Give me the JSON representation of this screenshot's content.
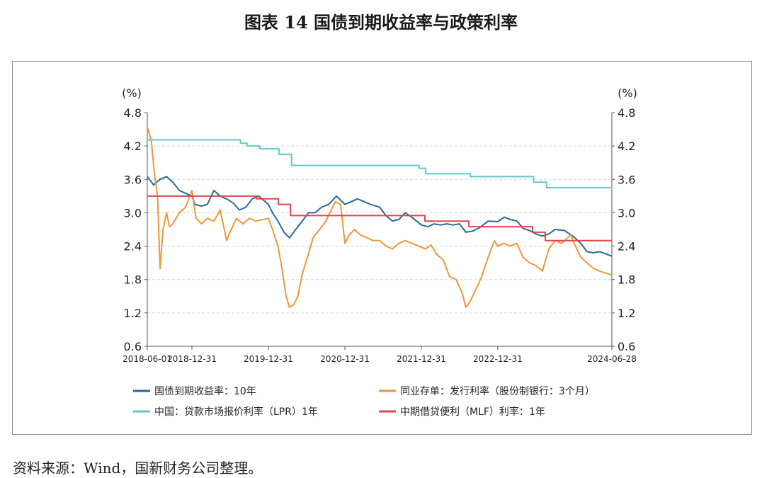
{
  "title": "图表 14  国债到期收益率与政策利率",
  "source": "资料来源：Wind，国新财务公司整理。",
  "chart_data": {
    "type": "line",
    "unit_left": "(%)",
    "unit_right": "(%)",
    "ylim": [
      0.6,
      4.8
    ],
    "yticks": [
      "4.8",
      "4.2",
      "3.6",
      "3.0",
      "2.4",
      "1.8",
      "1.2",
      "0.6"
    ],
    "xlim": [
      "2018-06-01",
      "2024-06-28"
    ],
    "xticks": [
      "2018-06-01",
      "2018-12-31",
      "2019-12-31",
      "2020-12-31",
      "2021-12-31",
      "2022-12-31",
      "2024-06-28"
    ],
    "grid": true,
    "legend_position": "bottom",
    "series": [
      {
        "name": "国债到期收益率：10年",
        "color": "#2a6a96",
        "style": "line",
        "points": [
          [
            "2018-06-01",
            3.65
          ],
          [
            "2018-07-01",
            3.5
          ],
          [
            "2018-08-01",
            3.6
          ],
          [
            "2018-09-01",
            3.65
          ],
          [
            "2018-10-01",
            3.55
          ],
          [
            "2018-11-01",
            3.4
          ],
          [
            "2018-12-31",
            3.3
          ],
          [
            "2019-01-15",
            3.15
          ],
          [
            "2019-02-15",
            3.12
          ],
          [
            "2019-03-15",
            3.15
          ],
          [
            "2019-04-15",
            3.4
          ],
          [
            "2019-05-15",
            3.3
          ],
          [
            "2019-06-15",
            3.25
          ],
          [
            "2019-07-15",
            3.18
          ],
          [
            "2019-08-15",
            3.05
          ],
          [
            "2019-09-15",
            3.1
          ],
          [
            "2019-10-15",
            3.25
          ],
          [
            "2019-11-15",
            3.3
          ],
          [
            "2019-12-31",
            3.15
          ],
          [
            "2020-01-20",
            3.0
          ],
          [
            "2020-02-15",
            2.85
          ],
          [
            "2020-03-15",
            2.65
          ],
          [
            "2020-04-10",
            2.55
          ],
          [
            "2020-05-10",
            2.7
          ],
          [
            "2020-06-10",
            2.85
          ],
          [
            "2020-07-10",
            3.0
          ],
          [
            "2020-08-10",
            3.0
          ],
          [
            "2020-09-10",
            3.1
          ],
          [
            "2020-10-15",
            3.15
          ],
          [
            "2020-11-20",
            3.3
          ],
          [
            "2020-12-31",
            3.15
          ],
          [
            "2021-01-31",
            3.2
          ],
          [
            "2021-03-01",
            3.25
          ],
          [
            "2021-04-01",
            3.2
          ],
          [
            "2021-05-01",
            3.15
          ],
          [
            "2021-06-15",
            3.1
          ],
          [
            "2021-07-15",
            2.95
          ],
          [
            "2021-08-15",
            2.85
          ],
          [
            "2021-09-15",
            2.88
          ],
          [
            "2021-10-15",
            3.0
          ],
          [
            "2021-11-15",
            2.92
          ],
          [
            "2021-12-31",
            2.78
          ],
          [
            "2022-02-01",
            2.75
          ],
          [
            "2022-03-01",
            2.8
          ],
          [
            "2022-04-01",
            2.78
          ],
          [
            "2022-05-01",
            2.8
          ],
          [
            "2022-06-01",
            2.78
          ],
          [
            "2022-07-01",
            2.8
          ],
          [
            "2022-08-01",
            2.65
          ],
          [
            "2022-09-01",
            2.67
          ],
          [
            "2022-10-01",
            2.72
          ],
          [
            "2022-11-15",
            2.85
          ],
          [
            "2022-12-31",
            2.84
          ],
          [
            "2023-01-31",
            2.92
          ],
          [
            "2023-03-01",
            2.88
          ],
          [
            "2023-04-01",
            2.85
          ],
          [
            "2023-05-01",
            2.72
          ],
          [
            "2023-06-01",
            2.68
          ],
          [
            "2023-07-01",
            2.62
          ],
          [
            "2023-08-01",
            2.58
          ],
          [
            "2023-09-01",
            2.62
          ],
          [
            "2023-10-01",
            2.7
          ],
          [
            "2023-11-15",
            2.68
          ],
          [
            "2023-12-31",
            2.56
          ],
          [
            "2024-02-01",
            2.45
          ],
          [
            "2024-03-01",
            2.3
          ],
          [
            "2024-04-01",
            2.28
          ],
          [
            "2024-05-01",
            2.3
          ],
          [
            "2024-06-28",
            2.22
          ]
        ]
      },
      {
        "name": "同业存单：发行利率（股份制银行：3个月）",
        "color": "#f0963a",
        "style": "line",
        "points": [
          [
            "2018-06-01",
            4.55
          ],
          [
            "2018-06-20",
            4.3
          ],
          [
            "2018-07-05",
            3.7
          ],
          [
            "2018-07-20",
            3.3
          ],
          [
            "2018-08-01",
            2.0
          ],
          [
            "2018-08-15",
            2.7
          ],
          [
            "2018-09-01",
            3.0
          ],
          [
            "2018-09-15",
            2.75
          ],
          [
            "2018-10-01",
            2.8
          ],
          [
            "2018-11-01",
            3.0
          ],
          [
            "2018-12-01",
            3.1
          ],
          [
            "2018-12-31",
            3.4
          ],
          [
            "2019-01-20",
            2.9
          ],
          [
            "2019-02-15",
            2.8
          ],
          [
            "2019-03-15",
            2.9
          ],
          [
            "2019-04-15",
            2.85
          ],
          [
            "2019-05-15",
            3.05
          ],
          [
            "2019-06-15",
            2.5
          ],
          [
            "2019-07-01",
            2.65
          ],
          [
            "2019-08-01",
            2.9
          ],
          [
            "2019-09-01",
            2.8
          ],
          [
            "2019-10-01",
            2.9
          ],
          [
            "2019-11-01",
            2.85
          ],
          [
            "2019-12-31",
            2.9
          ],
          [
            "2020-01-20",
            2.7
          ],
          [
            "2020-02-15",
            2.4
          ],
          [
            "2020-03-05",
            2.0
          ],
          [
            "2020-03-25",
            1.5
          ],
          [
            "2020-04-10",
            1.3
          ],
          [
            "2020-05-01",
            1.35
          ],
          [
            "2020-05-20",
            1.5
          ],
          [
            "2020-06-10",
            1.9
          ],
          [
            "2020-07-01",
            2.15
          ],
          [
            "2020-08-01",
            2.55
          ],
          [
            "2020-09-01",
            2.7
          ],
          [
            "2020-10-01",
            2.85
          ],
          [
            "2020-11-15",
            3.2
          ],
          [
            "2020-12-10",
            3.15
          ],
          [
            "2020-12-31",
            2.45
          ],
          [
            "2021-01-20",
            2.6
          ],
          [
            "2021-02-15",
            2.7
          ],
          [
            "2021-03-15",
            2.6
          ],
          [
            "2021-04-15",
            2.55
          ],
          [
            "2021-05-15",
            2.5
          ],
          [
            "2021-06-15",
            2.5
          ],
          [
            "2021-07-15",
            2.4
          ],
          [
            "2021-08-15",
            2.35
          ],
          [
            "2021-09-15",
            2.45
          ],
          [
            "2021-10-15",
            2.5
          ],
          [
            "2021-11-15",
            2.45
          ],
          [
            "2021-12-31",
            2.38
          ],
          [
            "2022-01-20",
            2.35
          ],
          [
            "2022-02-15",
            2.42
          ],
          [
            "2022-03-15",
            2.25
          ],
          [
            "2022-04-15",
            2.15
          ],
          [
            "2022-05-15",
            1.85
          ],
          [
            "2022-06-15",
            1.8
          ],
          [
            "2022-07-15",
            1.55
          ],
          [
            "2022-08-01",
            1.3
          ],
          [
            "2022-08-20",
            1.4
          ],
          [
            "2022-09-15",
            1.6
          ],
          [
            "2022-10-15",
            1.85
          ],
          [
            "2022-11-15",
            2.2
          ],
          [
            "2022-12-15",
            2.5
          ],
          [
            "2022-12-31",
            2.4
          ],
          [
            "2023-01-31",
            2.45
          ],
          [
            "2023-03-01",
            2.4
          ],
          [
            "2023-04-01",
            2.45
          ],
          [
            "2023-05-01",
            2.2
          ],
          [
            "2023-06-01",
            2.1
          ],
          [
            "2023-07-01",
            2.05
          ],
          [
            "2023-08-01",
            1.95
          ],
          [
            "2023-09-01",
            2.35
          ],
          [
            "2023-10-01",
            2.5
          ],
          [
            "2023-11-01",
            2.45
          ],
          [
            "2023-12-15",
            2.6
          ],
          [
            "2023-12-31",
            2.45
          ],
          [
            "2024-02-01",
            2.2
          ],
          [
            "2024-03-01",
            2.1
          ],
          [
            "2024-04-01",
            2.0
          ],
          [
            "2024-05-01",
            1.95
          ],
          [
            "2024-06-28",
            1.88
          ]
        ]
      },
      {
        "name": "中国：贷款市场报价利率（LPR）1年",
        "color": "#5ec8c6",
        "style": "step",
        "points": [
          [
            "2018-06-01",
            4.31
          ],
          [
            "2019-08-20",
            4.25
          ],
          [
            "2019-09-20",
            4.2
          ],
          [
            "2019-11-20",
            4.15
          ],
          [
            "2020-02-20",
            4.05
          ],
          [
            "2020-04-20",
            3.85
          ],
          [
            "2021-12-20",
            3.8
          ],
          [
            "2022-01-20",
            3.7
          ],
          [
            "2022-08-22",
            3.65
          ],
          [
            "2023-06-20",
            3.55
          ],
          [
            "2023-08-21",
            3.45
          ],
          [
            "2024-06-28",
            3.45
          ]
        ]
      },
      {
        "name": "中期借贷便利（MLF）利率：1年",
        "color": "#e0464f",
        "style": "step",
        "points": [
          [
            "2018-06-01",
            3.3
          ],
          [
            "2019-11-05",
            3.25
          ],
          [
            "2020-02-17",
            3.15
          ],
          [
            "2020-04-15",
            2.95
          ],
          [
            "2022-01-17",
            2.85
          ],
          [
            "2022-08-15",
            2.75
          ],
          [
            "2023-06-15",
            2.65
          ],
          [
            "2023-08-15",
            2.5
          ],
          [
            "2024-06-28",
            2.5
          ]
        ]
      }
    ]
  }
}
